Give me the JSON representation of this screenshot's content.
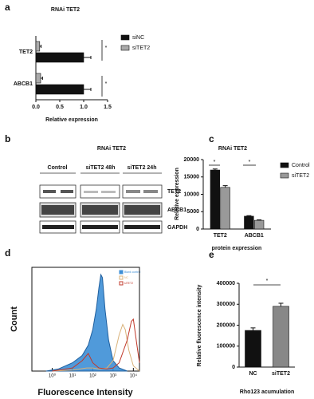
{
  "panel_labels": [
    "a",
    "b",
    "c",
    "d",
    "e"
  ],
  "blot": {
    "title": "RNAi TET2",
    "columns": [
      "Control",
      "siTET2 48h",
      "siTET2 24h"
    ],
    "rows": [
      "TET2",
      "ABCB1",
      "GAPDH"
    ]
  },
  "chart_data": [
    {
      "type": "bar",
      "horizontal": true,
      "title": "RNAi TET2",
      "categories": [
        "TET2",
        "ABCB1"
      ],
      "series": [
        {
          "name": "siNC",
          "color": "#111111",
          "values": [
            1.0,
            1.0
          ],
          "errors": [
            0.15,
            0.15
          ]
        },
        {
          "name": "siTET2",
          "color": "#aaaaaa",
          "values": [
            0.08,
            0.1
          ],
          "errors": [
            0.03,
            0.04
          ]
        }
      ],
      "xlim": [
        0,
        1.5
      ],
      "xticks": [
        {
          "value": 0,
          "label": "0.0"
        },
        0.5,
        {
          "value": 1,
          "label": "1.0"
        },
        1.5
      ],
      "x_label": "Relative expression",
      "annotations": [
        "*",
        "*"
      ],
      "legend": "right"
    },
    {
      "type": "bar",
      "title": "RNAi TET2",
      "categories": [
        "TET2",
        "ABCB1"
      ],
      "series": [
        {
          "name": "Control",
          "color": "#111111",
          "values": [
            17000,
            3700
          ],
          "errors": [
            300,
            150
          ]
        },
        {
          "name": "siTET2",
          "color": "#999999",
          "values": [
            12000,
            2500
          ],
          "errors": [
            500,
            150
          ]
        }
      ],
      "ylim": [
        0,
        20000
      ],
      "yticks": [
        0,
        5000,
        10000,
        15000,
        20000
      ],
      "y_label": "Relative expression",
      "x_label": "protein expression",
      "annotations": [
        "*",
        "*"
      ],
      "legend": "right"
    },
    {
      "type": "line",
      "xscale": "log",
      "x_label": "Fluorescence Intensity",
      "y_label": "Count",
      "xlim": [
        0.1,
        20000
      ],
      "ylim": [
        0,
        100
      ],
      "xticks": [
        {
          "value": 1,
          "label": "10⁰"
        },
        {
          "value": 10,
          "label": "10¹"
        },
        {
          "value": 100,
          "label": "10²"
        },
        {
          "value": 1000,
          "label": "10³"
        },
        {
          "value": 10000,
          "label": "10⁴"
        }
      ],
      "series": [
        {
          "name": "Blank control",
          "color": "#3d8fd6",
          "filled": true,
          "x": [
            0.5,
            2,
            10,
            30,
            60,
            100,
            150,
            200,
            250,
            300,
            400,
            600,
            1000,
            2000,
            5000
          ],
          "values": [
            0,
            2,
            8,
            15,
            25,
            40,
            60,
            80,
            93,
            90,
            60,
            30,
            10,
            3,
            0
          ]
        },
        {
          "name": "NC",
          "color": "#d9b27a",
          "filled": false,
          "x": [
            1,
            10,
            50,
            100,
            200,
            500,
            1000,
            2000,
            3000,
            4000,
            6000,
            10000,
            20000
          ],
          "values": [
            0,
            1,
            3,
            3,
            2,
            3,
            10,
            35,
            45,
            40,
            20,
            5,
            0
          ]
        },
        {
          "name": "siTET2",
          "color": "#c0392b",
          "filled": false,
          "x": [
            1,
            10,
            30,
            60,
            100,
            200,
            500,
            1000,
            2000,
            5000,
            8000,
            10000,
            15000,
            20000
          ],
          "values": [
            0,
            3,
            10,
            17,
            8,
            3,
            2,
            3,
            8,
            30,
            48,
            50,
            25,
            8
          ]
        }
      ],
      "legend": "upper right"
    },
    {
      "type": "bar",
      "categories": [
        "NC",
        "siTET2"
      ],
      "values": [
        175000,
        290000
      ],
      "errors": [
        12000,
        15000
      ],
      "colors": [
        "#111111",
        "#888888"
      ],
      "ylim": [
        0,
        400000
      ],
      "yticks": [
        0,
        100000,
        200000,
        300000,
        400000
      ],
      "y_label": "Relative fluorescence intensity",
      "x_label": "Rho123 acumulation",
      "annotations": [
        "*"
      ]
    }
  ]
}
